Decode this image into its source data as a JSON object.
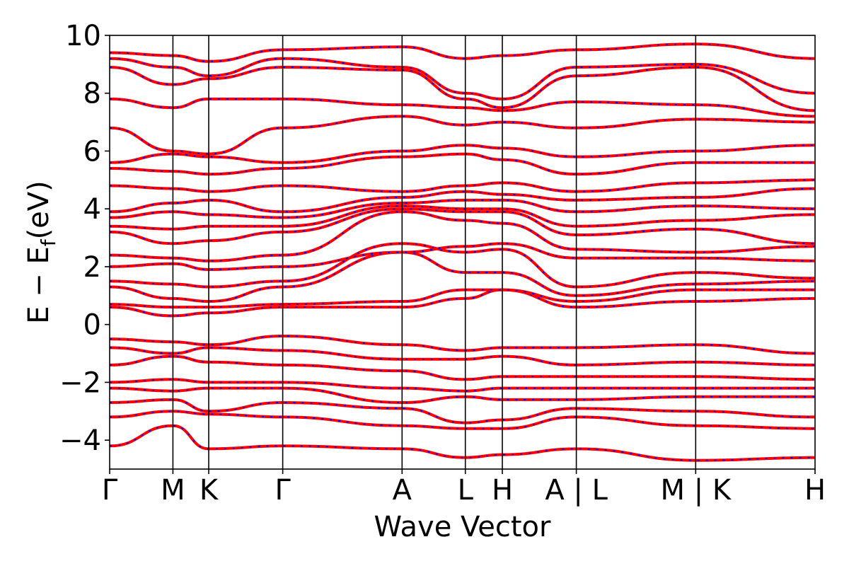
{
  "chart_data": {
    "type": "line",
    "title": "",
    "xlabel": "Wave Vector",
    "ylabel": "E − E",
    "ylabel_subscript": "f",
    "ylabel_unit": "(eV)",
    "ylim": [
      -5,
      10
    ],
    "yticks": [
      {
        "value": 10,
        "label": "10"
      },
      {
        "value": 8,
        "label": "8"
      },
      {
        "value": 6,
        "label": "6"
      },
      {
        "value": 4,
        "label": "4"
      },
      {
        "value": 2,
        "label": "2"
      },
      {
        "value": 0,
        "label": "0"
      },
      {
        "value": -2,
        "label": "−2"
      },
      {
        "value": -4,
        "label": "−4"
      }
    ],
    "kpath_x": [
      0,
      0.53,
      0.83,
      1.45,
      2.45,
      2.98,
      3.29,
      3.91,
      4.91,
      5.91
    ],
    "kpoint_labels": [
      "Γ",
      "M",
      "K",
      "Γ",
      "A",
      "L",
      "H",
      "A | L",
      "M | K",
      "H"
    ],
    "segment_breaks": [
      3.91,
      4.91
    ],
    "series_styles": [
      {
        "color": "#ff0000",
        "style": "solid"
      },
      {
        "color": "#0000ff",
        "style": "dotted"
      }
    ],
    "bands_at_kpoints": [
      [
        -4.2,
        -3.5,
        -4.3,
        -4.2,
        -4.3,
        -4.6,
        -4.5,
        -4.3,
        -4.7,
        -4.6
      ],
      [
        -3.2,
        -3.0,
        -3.1,
        -3.2,
        -3.5,
        -3.6,
        -3.6,
        -3.2,
        -3.5,
        -3.6
      ],
      [
        -2.7,
        -2.6,
        -3.0,
        -2.7,
        -2.9,
        -3.4,
        -3.3,
        -2.9,
        -3.0,
        -3.2
      ],
      [
        -2.2,
        -2.3,
        -2.2,
        -2.2,
        -2.7,
        -2.5,
        -2.6,
        -2.6,
        -2.5,
        -2.5
      ],
      [
        -2.0,
        -1.9,
        -2.0,
        -2.0,
        -2.2,
        -2.3,
        -2.2,
        -2.2,
        -2.2,
        -2.2
      ],
      [
        -1.4,
        -1.1,
        -1.3,
        -1.4,
        -1.6,
        -1.9,
        -1.8,
        -1.8,
        -1.8,
        -1.9
      ],
      [
        -0.8,
        -1.0,
        -0.8,
        -0.9,
        -1.2,
        -1.2,
        -1.1,
        -1.4,
        -1.3,
        -1.4
      ],
      [
        -0.5,
        -0.6,
        -0.7,
        -0.4,
        -0.7,
        -0.9,
        -0.8,
        -0.8,
        -0.7,
        -1.0
      ],
      [
        0.6,
        0.3,
        0.4,
        0.6,
        0.6,
        0.9,
        1.2,
        0.6,
        0.8,
        0.9
      ],
      [
        0.7,
        0.6,
        0.6,
        0.7,
        0.8,
        1.2,
        1.2,
        0.8,
        1.2,
        1.2
      ],
      [
        1.3,
        0.9,
        0.8,
        1.3,
        2.5,
        1.8,
        1.8,
        1.0,
        1.4,
        1.5
      ],
      [
        1.5,
        1.4,
        1.3,
        1.5,
        2.8,
        2.5,
        2.6,
        1.3,
        1.8,
        1.6
      ],
      [
        2.0,
        2.1,
        1.9,
        2.0,
        2.5,
        2.7,
        2.8,
        2.3,
        2.3,
        2.2
      ],
      [
        2.4,
        2.3,
        2.2,
        2.4,
        3.9,
        3.6,
        3.5,
        2.6,
        2.5,
        2.7
      ],
      [
        3.2,
        2.8,
        2.9,
        3.2,
        4.0,
        3.9,
        3.9,
        3.1,
        3.3,
        2.8
      ],
      [
        3.4,
        3.3,
        3.4,
        3.4,
        4.1,
        4.0,
        4.0,
        3.4,
        3.6,
        3.8
      ],
      [
        3.7,
        3.9,
        3.8,
        3.7,
        4.2,
        4.3,
        4.3,
        3.9,
        4.1,
        4.0
      ],
      [
        3.9,
        4.2,
        4.3,
        3.9,
        4.4,
        4.6,
        4.5,
        4.3,
        4.4,
        4.7
      ],
      [
        4.8,
        4.7,
        4.6,
        4.8,
        4.6,
        4.8,
        4.9,
        4.6,
        4.9,
        5.0
      ],
      [
        5.4,
        5.3,
        5.2,
        5.4,
        5.8,
        5.9,
        5.7,
        5.2,
        5.6,
        5.6
      ],
      [
        5.6,
        5.9,
        5.8,
        5.6,
        6.0,
        6.2,
        6.1,
        5.8,
        6.0,
        6.2
      ],
      [
        6.8,
        6.0,
        5.9,
        6.8,
        7.2,
        6.9,
        7.0,
        6.8,
        7.1,
        7.0
      ],
      [
        7.8,
        7.5,
        7.8,
        7.8,
        7.6,
        7.5,
        7.4,
        7.7,
        7.6,
        7.2
      ],
      [
        8.9,
        8.3,
        8.5,
        8.9,
        8.8,
        7.8,
        7.5,
        8.6,
        8.9,
        7.4
      ],
      [
        9.2,
        8.9,
        8.6,
        9.2,
        8.9,
        8.0,
        7.8,
        8.9,
        9.0,
        8.0
      ],
      [
        9.4,
        9.3,
        9.1,
        9.5,
        9.6,
        9.2,
        9.3,
        9.5,
        9.7,
        9.2
      ]
    ]
  }
}
